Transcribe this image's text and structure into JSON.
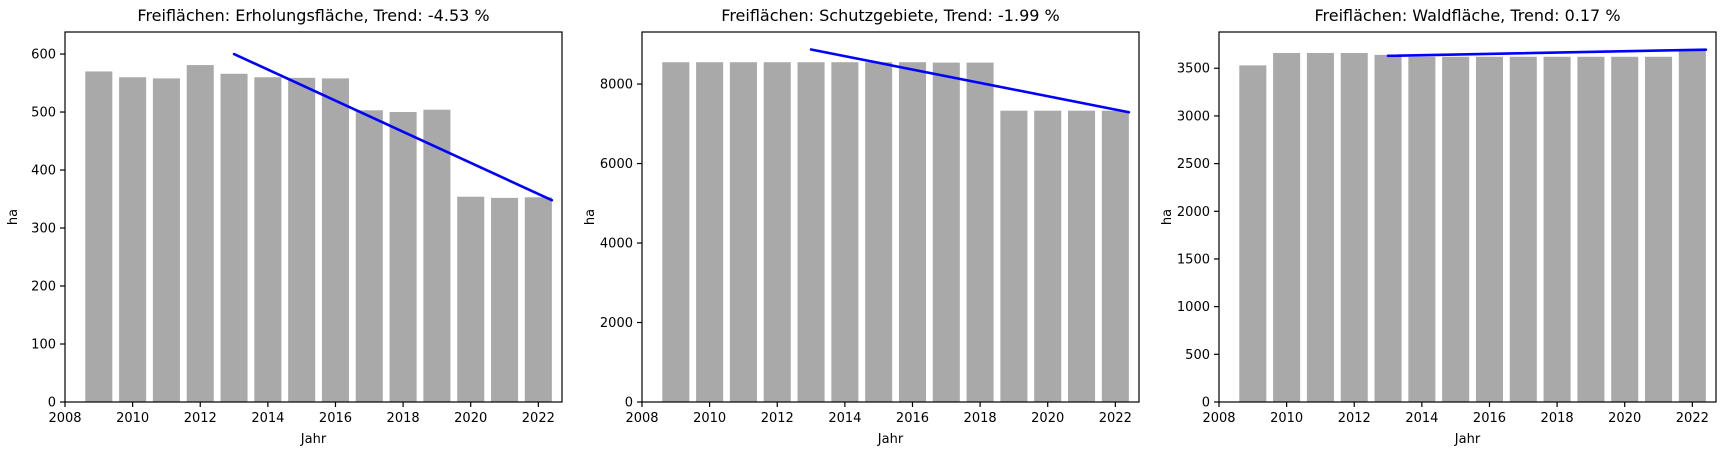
{
  "page": {
    "background_color": "#ffffff",
    "text_color": "#000000",
    "spine_color": "#000000"
  },
  "chart_data": [
    {
      "type": "bar",
      "title": "Freiflächen: Erholungsfläche, Trend:  -4.53 %",
      "trend_percent_label": "-4.53 %",
      "xlabel": "Jahr",
      "ylabel": "ha",
      "categories": [
        2009,
        2010,
        2011,
        2012,
        2013,
        2014,
        2015,
        2016,
        2017,
        2018,
        2019,
        2020,
        2021,
        2022
      ],
      "values": [
        570,
        560,
        558,
        581,
        566,
        560,
        559,
        558,
        503,
        500,
        504,
        354,
        352,
        353
      ],
      "bar_color": "#a9a9a9",
      "trend": {
        "color": "#0000ff",
        "x": [
          2013,
          2022.4
        ],
        "y": [
          600,
          348
        ]
      },
      "xlim": [
        2008,
        2022.7
      ],
      "ylim": [
        0,
        638
      ],
      "xticks": [
        2008,
        2010,
        2012,
        2014,
        2016,
        2018,
        2020,
        2022
      ],
      "yticks": [
        0,
        100,
        200,
        300,
        400,
        500,
        600
      ],
      "grid": false,
      "legend": "none"
    },
    {
      "type": "bar",
      "title": "Freiflächen: Schutzgebiete, Trend:  -1.99 %",
      "trend_percent_label": "-1.99 %",
      "xlabel": "Jahr",
      "ylabel": "ha",
      "categories": [
        2009,
        2010,
        2011,
        2012,
        2013,
        2014,
        2015,
        2016,
        2017,
        2018,
        2019,
        2020,
        2021,
        2022
      ],
      "values": [
        8550,
        8550,
        8550,
        8550,
        8550,
        8550,
        8550,
        8550,
        8540,
        8540,
        7330,
        7330,
        7330,
        7330
      ],
      "bar_color": "#a9a9a9",
      "trend": {
        "color": "#0000ff",
        "x": [
          2013,
          2022.4
        ],
        "y": [
          8870,
          7290
        ]
      },
      "xlim": [
        2008,
        2022.7
      ],
      "ylim": [
        0,
        9310
      ],
      "xticks": [
        2008,
        2010,
        2012,
        2014,
        2016,
        2018,
        2020,
        2022
      ],
      "yticks": [
        0,
        2000,
        4000,
        6000,
        8000
      ],
      "grid": false,
      "legend": "none"
    },
    {
      "type": "bar",
      "title": "Freiflächen: Waldfläche, Trend:  0.17 %",
      "trend_percent_label": "0.17 %",
      "xlabel": "Jahr",
      "ylabel": "ha",
      "categories": [
        2009,
        2010,
        2011,
        2012,
        2013,
        2014,
        2015,
        2016,
        2017,
        2018,
        2019,
        2020,
        2021,
        2022
      ],
      "values": [
        3530,
        3660,
        3660,
        3660,
        3640,
        3620,
        3620,
        3620,
        3620,
        3620,
        3620,
        3620,
        3620,
        3690
      ],
      "bar_color": "#a9a9a9",
      "trend": {
        "color": "#0000ff",
        "x": [
          2013,
          2022.4
        ],
        "y": [
          3630,
          3695
        ]
      },
      "xlim": [
        2008,
        2022.7
      ],
      "ylim": [
        0,
        3880
      ],
      "xticks": [
        2008,
        2010,
        2012,
        2014,
        2016,
        2018,
        2020,
        2022
      ],
      "yticks": [
        0,
        500,
        1000,
        1500,
        2000,
        2500,
        3000,
        3500
      ],
      "grid": false,
      "legend": "none"
    }
  ]
}
